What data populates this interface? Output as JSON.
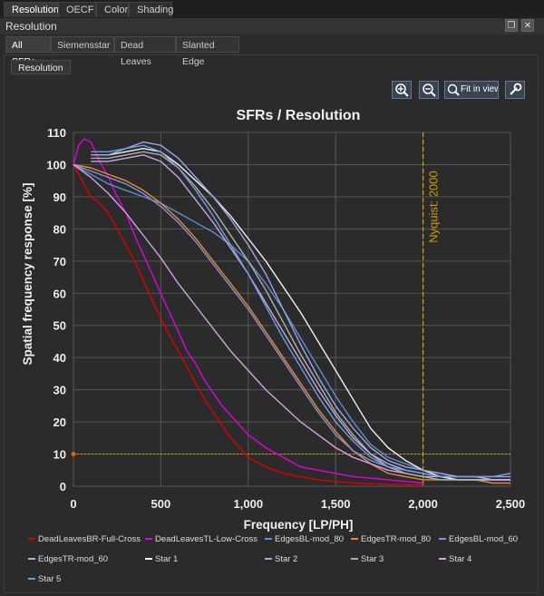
{
  "tabs": [
    "Resolution",
    "OECF",
    "Color",
    "Shading"
  ],
  "panel_title": "Resolution",
  "subtabs": [
    "All SFRs",
    "Siemensstar",
    "Dead Leaves",
    "Slanted Edge"
  ],
  "inner_tab": "Resolution",
  "toolbar": {
    "zoom_in": "zoom-in",
    "zoom_out": "zoom-out",
    "fit_label": "Fit in view",
    "settings": "wrench"
  },
  "chart_data": {
    "type": "line",
    "title": "SFRs / Resolution",
    "xlabel": "Frequency [LP/PH]",
    "ylabel": "Spatial frequency response [%]",
    "xlim": [
      0,
      2500
    ],
    "ylim": [
      0,
      110
    ],
    "xticks": [
      0,
      500,
      1000,
      1500,
      2000,
      2500
    ],
    "xtick_labels": [
      "0",
      "500",
      "1,000",
      "1,500",
      "2,000",
      "2,500"
    ],
    "yticks": [
      0,
      10,
      20,
      30,
      40,
      50,
      60,
      70,
      80,
      90,
      100,
      110
    ],
    "grid": true,
    "nyquist": {
      "x": 2000,
      "label": "Nyquist: 2000",
      "color": "#c8a000"
    },
    "reference_line": {
      "y": 10,
      "color": "#c8a000"
    },
    "legend_position": "bottom",
    "series": [
      {
        "name": "DeadLeavesBR-Full-Cross",
        "color": "#e00000",
        "x": [
          0,
          50,
          100,
          150,
          200,
          250,
          300,
          350,
          400,
          450,
          500,
          550,
          600,
          650,
          700,
          750,
          800,
          850,
          900,
          950,
          1000,
          1100,
          1200,
          1300,
          1400,
          1500,
          1600,
          1700,
          1800,
          1900,
          2000
        ],
        "y": [
          100,
          95,
          90,
          88,
          85,
          80,
          75,
          70,
          64,
          58,
          52,
          47,
          42,
          37,
          32,
          27,
          23,
          19,
          15,
          12,
          9,
          6,
          4,
          3,
          2,
          1.5,
          1,
          0.8,
          0.6,
          0.5,
          0.5
        ]
      },
      {
        "name": "DeadLeavesTL-Low-Cross",
        "color": "#e000e0",
        "x": [
          0,
          30,
          60,
          100,
          150,
          200,
          250,
          300,
          350,
          400,
          450,
          500,
          550,
          600,
          650,
          700,
          750,
          800,
          850,
          900,
          950,
          1000,
          1100,
          1200,
          1300,
          1400,
          1500,
          1600,
          1700,
          1800,
          1900,
          2000
        ],
        "y": [
          100,
          106,
          108,
          107,
          101,
          96,
          90,
          85,
          78,
          72,
          66,
          60,
          54,
          48,
          42,
          38,
          33,
          29,
          25,
          22,
          19,
          16,
          12,
          9,
          6,
          5,
          4,
          3,
          2.5,
          2,
          1.5,
          1
        ]
      },
      {
        "name": "EdgesBL-mod_80",
        "color": "#5a8fd8",
        "x": [
          0,
          100,
          200,
          300,
          400,
          500,
          600,
          700,
          800,
          900,
          1000,
          1100,
          1200,
          1300,
          1400,
          1500,
          1600,
          1700,
          1800,
          1900,
          2000,
          2100,
          2200,
          2300,
          2400,
          2500
        ],
        "y": [
          100,
          97,
          94,
          92,
          90,
          88,
          85,
          82,
          79,
          75,
          70,
          63,
          55,
          46,
          37,
          28,
          20,
          13,
          9,
          7,
          5,
          4,
          3,
          3,
          3,
          4
        ]
      },
      {
        "name": "EdgesTR-mod_80",
        "color": "#e08a3a",
        "x": [
          0,
          100,
          200,
          300,
          400,
          500,
          600,
          700,
          800,
          900,
          1000,
          1100,
          1200,
          1300,
          1400,
          1500,
          1600,
          1700,
          1800,
          1900,
          2000,
          2100,
          2200,
          2300,
          2400,
          2500
        ],
        "y": [
          100,
          99,
          97,
          95,
          92,
          88,
          83,
          77,
          70,
          63,
          56,
          48,
          40,
          32,
          24,
          17,
          11,
          7,
          4,
          3,
          2,
          2,
          2,
          2,
          1,
          1
        ]
      },
      {
        "name": "EdgesBL-mod_60",
        "color": "#8a90d8",
        "x": [
          0,
          100,
          200,
          300,
          400,
          500,
          600,
          700,
          800,
          900,
          1000,
          1100,
          1200,
          1300,
          1400,
          1500,
          1600,
          1700,
          1800,
          1900,
          2000,
          2100,
          2200,
          2300,
          2400,
          2500
        ],
        "y": [
          100,
          98,
          96,
          94,
          91,
          87,
          82,
          76,
          69,
          62,
          55,
          47,
          39,
          31,
          23,
          16,
          11,
          8,
          6,
          5,
          4,
          3,
          3,
          3,
          2,
          2
        ]
      },
      {
        "name": "EdgesTR-mod_60",
        "color": "#d8a0e8",
        "x": [
          0,
          100,
          200,
          300,
          400,
          500,
          600,
          700,
          800,
          900,
          1000,
          1100,
          1200,
          1300,
          1400,
          1500,
          1600,
          1700,
          1800,
          1900,
          2000,
          2100,
          2200,
          2300,
          2400,
          2500
        ],
        "y": [
          100,
          96,
          91,
          85,
          78,
          71,
          63,
          56,
          49,
          42,
          36,
          30,
          25,
          20,
          16,
          12,
          9,
          7,
          5,
          4,
          3,
          3,
          2,
          2,
          2,
          2
        ]
      },
      {
        "name": "Star 1",
        "color": "#f0f0f0",
        "x": [
          100,
          200,
          300,
          400,
          500,
          600,
          700,
          800,
          900,
          1000,
          1100,
          1200,
          1300,
          1400,
          1500,
          1600,
          1700,
          1800,
          1900,
          2000,
          2100,
          2200,
          2300,
          2400,
          2500
        ],
        "y": [
          103,
          103,
          104,
          105,
          104,
          100,
          95,
          90,
          84,
          77,
          70,
          62,
          54,
          45,
          36,
          27,
          18,
          12,
          8,
          5,
          3,
          2,
          2,
          2,
          2
        ]
      },
      {
        "name": "Star 2",
        "color": "#9aa6e6",
        "x": [
          100,
          200,
          300,
          400,
          500,
          600,
          700,
          800,
          900,
          1000,
          1100,
          1200,
          1300,
          1400,
          1500,
          1600,
          1700,
          1800,
          1900,
          2000,
          2100,
          2200,
          2300,
          2400,
          2500
        ],
        "y": [
          103,
          103,
          105,
          107,
          106,
          102,
          96,
          90,
          83,
          75,
          66,
          55,
          44,
          34,
          25,
          18,
          12,
          8,
          6,
          5,
          4,
          3,
          3,
          3,
          3
        ]
      },
      {
        "name": "Star 3",
        "color": "#b0b0b0",
        "x": [
          100,
          200,
          300,
          400,
          500,
          600,
          700,
          800,
          900,
          1000,
          1100,
          1200,
          1300,
          1400,
          1500,
          1600,
          1700,
          1800,
          1900,
          2000,
          2100,
          2200,
          2300,
          2400,
          2500
        ],
        "y": [
          102,
          102,
          103,
          104,
          103,
          99,
          93,
          86,
          78,
          70,
          61,
          51,
          41,
          32,
          23,
          16,
          10,
          6,
          4,
          3,
          2,
          2,
          2,
          2,
          2
        ]
      },
      {
        "name": "Star 4",
        "color": "#c8a8e8",
        "x": [
          100,
          200,
          300,
          400,
          500,
          600,
          700,
          800,
          900,
          1000,
          1100,
          1200,
          1300,
          1400,
          1500,
          1600,
          1700,
          1800,
          1900,
          2000,
          2100,
          2200,
          2300,
          2400,
          2500
        ],
        "y": [
          101,
          101,
          102,
          103,
          101,
          96,
          89,
          82,
          74,
          66,
          57,
          48,
          39,
          30,
          22,
          15,
          10,
          7,
          5,
          4,
          3,
          3,
          3,
          2,
          2
        ]
      },
      {
        "name": "Star 5",
        "color": "#6aa0e0",
        "x": [
          100,
          200,
          300,
          400,
          500,
          600,
          700,
          800,
          900,
          1000,
          1100,
          1200,
          1300,
          1400,
          1500,
          1600,
          1700,
          1800,
          1900,
          2000,
          2100,
          2200,
          2300,
          2400,
          2500
        ],
        "y": [
          104,
          104,
          105,
          106,
          104,
          99,
          92,
          84,
          75,
          66,
          56,
          46,
          37,
          28,
          20,
          14,
          9,
          6,
          5,
          4,
          3,
          3,
          3,
          3,
          4
        ]
      }
    ]
  }
}
